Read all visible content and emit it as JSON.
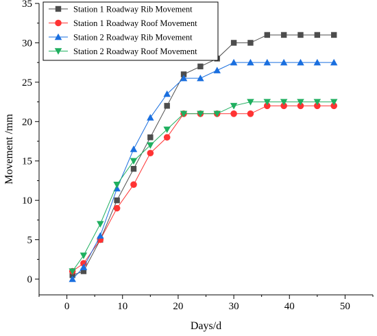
{
  "chart_data": {
    "type": "line",
    "title": "",
    "xlabel": "Days/d",
    "ylabel": "Movement /mm",
    "xlim": [
      -5,
      55
    ],
    "ylim": [
      -2,
      35
    ],
    "x_ticks": [
      0,
      10,
      20,
      30,
      40,
      50
    ],
    "y_ticks": [
      0,
      5,
      10,
      15,
      20,
      25,
      30,
      35
    ],
    "grid": false,
    "legend_position": "top-left",
    "series": [
      {
        "name": "Station 1 Roadway Rib Movement",
        "color": "#4d4d4d",
        "marker": "square",
        "x": [
          1,
          3,
          6,
          9,
          12,
          15,
          18,
          21,
          24,
          27,
          30,
          33,
          36,
          39,
          42,
          45,
          48
        ],
        "y": [
          0.5,
          1,
          5,
          10,
          14,
          18,
          22,
          26,
          27,
          28,
          30,
          30,
          31,
          31,
          31,
          31,
          31
        ]
      },
      {
        "name": "Station 1 Roadway Roof Movement",
        "color": "#ff3333",
        "marker": "circle",
        "x": [
          1,
          3,
          6,
          9,
          12,
          15,
          18,
          21,
          24,
          27,
          30,
          33,
          36,
          39,
          42,
          45,
          48
        ],
        "y": [
          1,
          2,
          5,
          9,
          12,
          16,
          18,
          21,
          21,
          21,
          21,
          21,
          22,
          22,
          22,
          22,
          22
        ]
      },
      {
        "name": "Station 2 Roadway Rib Movement",
        "color": "#1a6fdf",
        "marker": "triangle-up",
        "x": [
          1,
          3,
          6,
          9,
          12,
          15,
          18,
          21,
          24,
          27,
          30,
          33,
          36,
          39,
          42,
          45,
          48
        ],
        "y": [
          0,
          1.5,
          5.5,
          11.5,
          16.5,
          20.5,
          23.5,
          25.5,
          25.5,
          26.5,
          27.5,
          27.5,
          27.5,
          27.5,
          27.5,
          27.5,
          27.5
        ]
      },
      {
        "name": "Station 2 Roadway Roof Movement",
        "color": "#1faf5f",
        "marker": "triangle-down",
        "x": [
          1,
          3,
          6,
          9,
          12,
          15,
          18,
          21,
          24,
          27,
          30,
          33,
          36,
          39,
          42,
          45,
          48
        ],
        "y": [
          1,
          3,
          7,
          12,
          15,
          17,
          19,
          21,
          21,
          21,
          22,
          22.5,
          22.5,
          22.5,
          22.5,
          22.5,
          22.5
        ]
      }
    ]
  }
}
